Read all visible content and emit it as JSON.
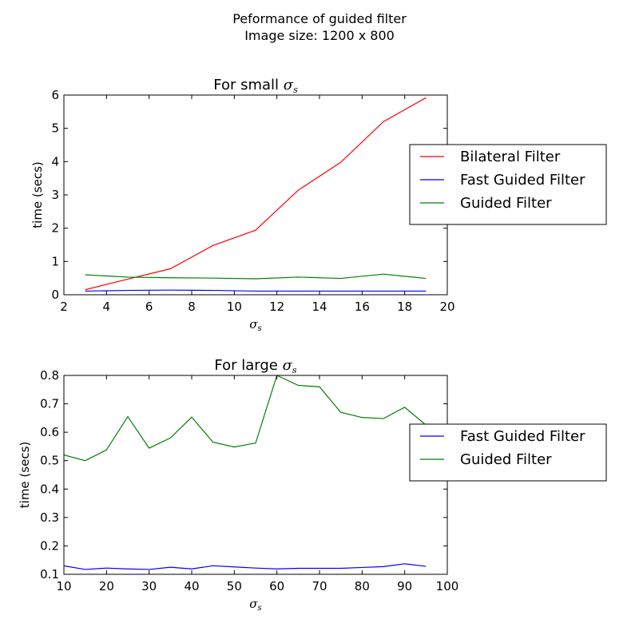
{
  "figure": {
    "suptitle_line1": "Peformance of guided filter",
    "suptitle_line2": "Image size: 1200 x 800"
  },
  "chart_data": [
    {
      "type": "line",
      "title_prefix": "For small ",
      "title_symbol": "σ",
      "title_subscript": "s",
      "xlabel_symbol": "σ",
      "xlabel_subscript": "s",
      "ylabel": "time (secs)",
      "xlim": [
        2,
        20
      ],
      "ylim": [
        0,
        6
      ],
      "xticks": [
        2,
        4,
        6,
        8,
        10,
        12,
        14,
        16,
        18,
        20
      ],
      "yticks": [
        0,
        1,
        2,
        3,
        4,
        5,
        6
      ],
      "grid": false,
      "legend_position": "right, outside plot",
      "x": [
        3,
        5,
        7,
        9,
        11,
        13,
        15,
        17,
        19
      ],
      "series": [
        {
          "name": "Bilateral Filter",
          "color": "#ff0000",
          "values": [
            0.15,
            0.47,
            0.78,
            1.48,
            1.94,
            3.14,
            3.98,
            5.2,
            5.92
          ]
        },
        {
          "name": "Fast Guided Filter",
          "color": "#0000ff",
          "values": [
            0.11,
            0.13,
            0.14,
            0.13,
            0.11,
            0.11,
            0.11,
            0.11,
            0.11
          ]
        },
        {
          "name": "Guided Filter",
          "color": "#008000",
          "values": [
            0.6,
            0.53,
            0.51,
            0.5,
            0.48,
            0.53,
            0.49,
            0.62,
            0.49
          ]
        }
      ]
    },
    {
      "type": "line",
      "title_prefix": "For large ",
      "title_symbol": "σ",
      "title_subscript": "s",
      "xlabel_symbol": "σ",
      "xlabel_subscript": "s",
      "ylabel": "time (secs)",
      "xlim": [
        10,
        100
      ],
      "ylim": [
        0.1,
        0.8
      ],
      "xticks": [
        10,
        20,
        30,
        40,
        50,
        60,
        70,
        80,
        90,
        100
      ],
      "yticks": [
        0.1,
        0.2,
        0.3,
        0.4,
        0.5,
        0.6,
        0.7,
        0.8
      ],
      "grid": false,
      "legend_position": "right, outside plot",
      "x": [
        10,
        15,
        20,
        25,
        30,
        35,
        40,
        45,
        50,
        55,
        60,
        65,
        70,
        75,
        80,
        85,
        90,
        95
      ],
      "series": [
        {
          "name": "Fast Guided Filter",
          "color": "#0000ff",
          "values": [
            0.13,
            0.117,
            0.122,
            0.119,
            0.117,
            0.125,
            0.119,
            0.13,
            0.126,
            0.122,
            0.119,
            0.121,
            0.121,
            0.121,
            0.124,
            0.127,
            0.137,
            0.128
          ]
        },
        {
          "name": "Guided Filter",
          "color": "#008000",
          "values": [
            0.52,
            0.5,
            0.538,
            0.655,
            0.544,
            0.58,
            0.653,
            0.565,
            0.548,
            0.562,
            0.8,
            0.765,
            0.76,
            0.67,
            0.652,
            0.648,
            0.688,
            0.625
          ]
        }
      ]
    }
  ]
}
